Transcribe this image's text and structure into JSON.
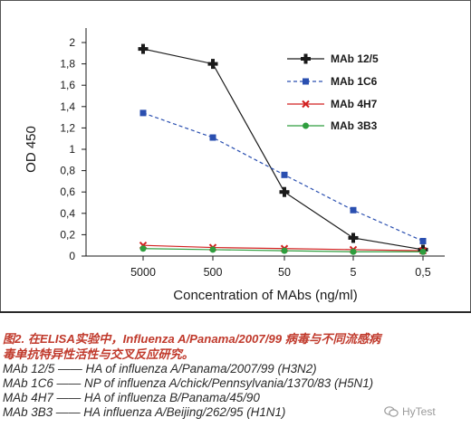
{
  "chart_data": {
    "type": "line",
    "categories": [
      "5000",
      "500",
      "50",
      "5",
      "0,5"
    ],
    "series": [
      {
        "name": "MAb 12/5",
        "color": "#1a1a1a",
        "marker": "plus",
        "dash": "solid",
        "values": [
          1.94,
          1.8,
          0.6,
          0.17,
          0.06
        ]
      },
      {
        "name": "MAb 1C6",
        "color": "#2a4fb0",
        "marker": "square",
        "dash": "dashed",
        "values": [
          1.34,
          1.11,
          0.76,
          0.43,
          0.14
        ]
      },
      {
        "name": "MAb 4H7",
        "color": "#d22020",
        "marker": "x",
        "dash": "solid",
        "values": [
          0.1,
          0.08,
          0.07,
          0.06,
          0.05
        ]
      },
      {
        "name": "MAb 3B3",
        "color": "#2e9e3e",
        "marker": "circle",
        "dash": "solid",
        "values": [
          0.07,
          0.06,
          0.05,
          0.04,
          0.04
        ]
      }
    ],
    "xlabel": "Concentration of MAbs (ng/ml)",
    "ylabel": "OD 450",
    "ylim": [
      0,
      2
    ],
    "yticks": [
      0,
      0.2,
      0.4,
      0.6,
      0.8,
      1,
      1.2,
      1.4,
      1.6,
      1.8,
      2
    ],
    "ytick_labels": [
      "0",
      "0,2",
      "0,4",
      "0,6",
      "0,8",
      "1",
      "1,2",
      "1,4",
      "1,6",
      "1,8",
      "2"
    ],
    "grid": false,
    "legend_position": "top-right"
  },
  "caption": {
    "title_line1": "图2. 在ELISA实验中，Influenza A/Panama/2007/99 病毒与不同流感病",
    "title_line2": "毒单抗特异性活性与交叉反应研究。",
    "lines": [
      "MAb 12/5 —— HA of influenza A/Panama/2007/99 (H3N2)",
      "MAb 1C6 —— NP of influenza A/chick/Pennsylvania/1370/83 (H5N1)",
      "MAb 4H7 —— HA of influenza B/Panama/45/90",
      "MAb 3B3 —— HA influenza A/Beijing/262/95 (H1N1)"
    ]
  },
  "watermark": {
    "text": "HyTest",
    "icon": "wechat-icon"
  }
}
